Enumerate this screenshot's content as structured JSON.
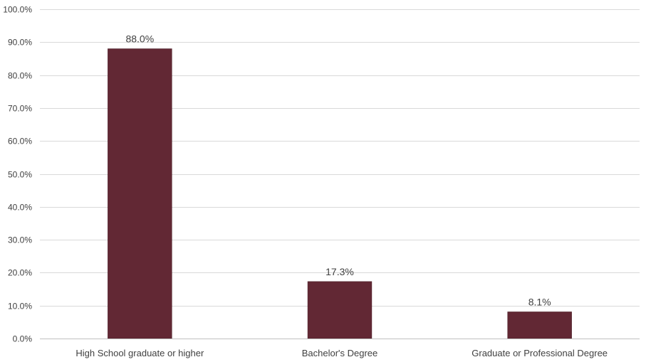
{
  "chart_data": {
    "type": "bar",
    "categories": [
      "High School graduate or higher",
      "Bachelor's Degree",
      "Graduate or Professional Degree"
    ],
    "values": [
      88.0,
      17.3,
      8.1
    ],
    "data_labels": [
      "88.0%",
      "17.3%",
      "8.1%"
    ],
    "ylim": [
      0,
      100
    ],
    "yticks": [
      0,
      10,
      20,
      30,
      40,
      50,
      60,
      70,
      80,
      90,
      100
    ],
    "ytick_labels": [
      "0.0%",
      "10.0%",
      "20.0%",
      "30.0%",
      "40.0%",
      "50.0%",
      "60.0%",
      "70.0%",
      "80.0%",
      "90.0%",
      "100.0%"
    ],
    "grid": true,
    "legend": "none",
    "bar_color": "#622834"
  }
}
